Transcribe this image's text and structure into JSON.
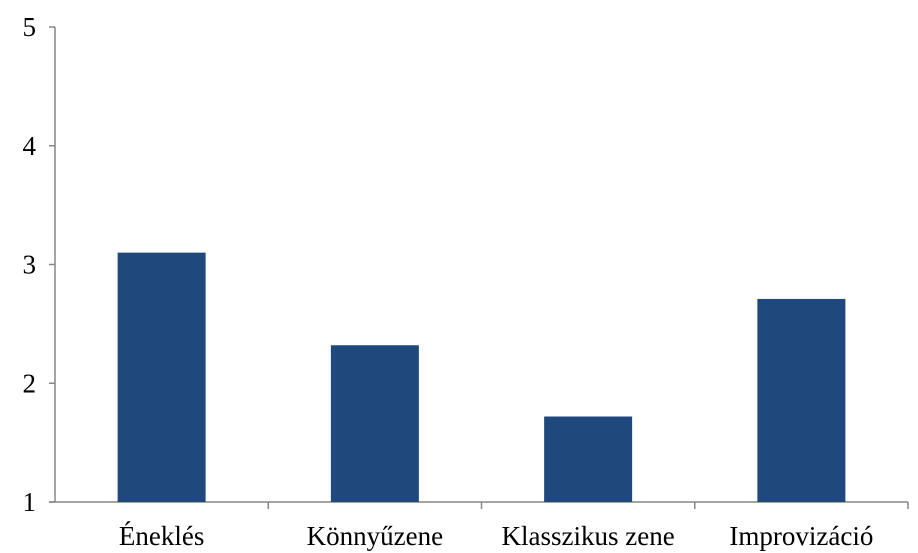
{
  "chart_data": {
    "type": "bar",
    "title": "",
    "xlabel": "",
    "ylabel": "",
    "categories": [
      "Éneklés",
      "Könnyűzene",
      "Klasszikus zene",
      "Improvizáció"
    ],
    "values": [
      3.1,
      2.32,
      1.72,
      2.71
    ],
    "ylim": [
      1,
      5
    ],
    "yticks": [
      "1",
      "2",
      "3",
      "4",
      "5"
    ],
    "grid": false,
    "legend": "none",
    "bar_color": "#1F497D"
  }
}
